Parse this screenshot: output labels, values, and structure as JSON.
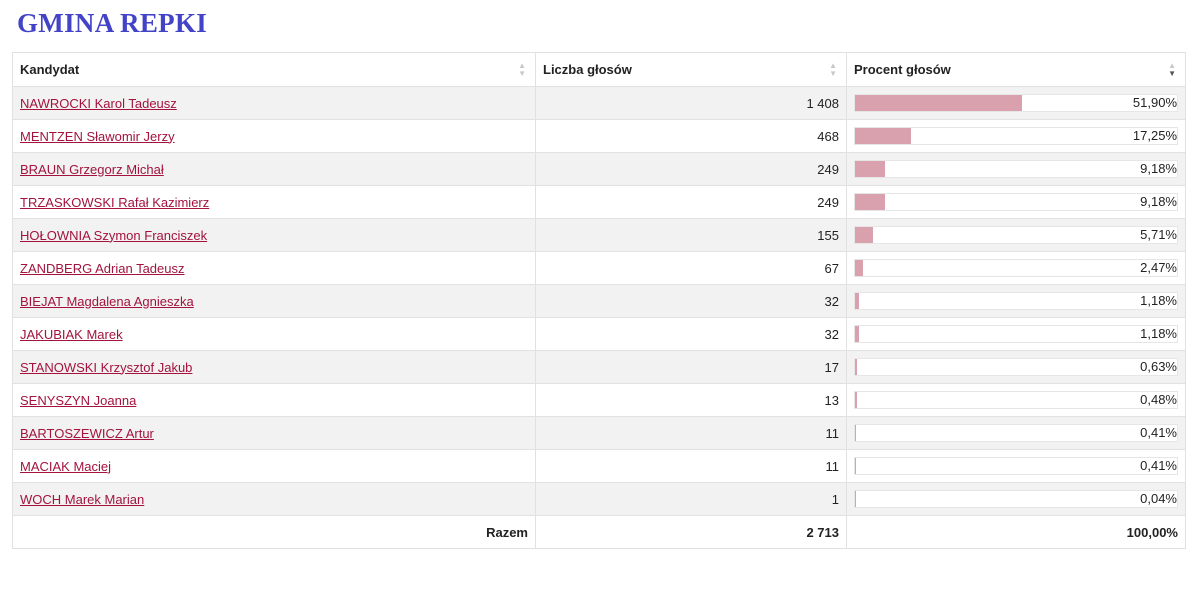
{
  "page_title": "GMINA REPKI",
  "table": {
    "headers": {
      "candidate": "Kandydat",
      "votes": "Liczba głosów",
      "percent": "Procent głosów"
    },
    "sort_icons": {
      "inactive": "sort-both-icon",
      "active": "sort-desc-icon"
    },
    "rows": [
      {
        "name": "NAWROCKI Karol Tadeusz",
        "votes": "1 408",
        "percent": "51,90%",
        "share": 51.9
      },
      {
        "name": "MENTZEN Sławomir Jerzy",
        "votes": "468",
        "percent": "17,25%",
        "share": 17.25
      },
      {
        "name": "BRAUN Grzegorz Michał",
        "votes": "249",
        "percent": "9,18%",
        "share": 9.18
      },
      {
        "name": "TRZASKOWSKI Rafał Kazimierz",
        "votes": "249",
        "percent": "9,18%",
        "share": 9.18
      },
      {
        "name": "HOŁOWNIA Szymon Franciszek",
        "votes": "155",
        "percent": "5,71%",
        "share": 5.71
      },
      {
        "name": "ZANDBERG Adrian Tadeusz",
        "votes": "67",
        "percent": "2,47%",
        "share": 2.47
      },
      {
        "name": "BIEJAT Magdalena Agnieszka",
        "votes": "32",
        "percent": "1,18%",
        "share": 1.18
      },
      {
        "name": "JAKUBIAK Marek",
        "votes": "32",
        "percent": "1,18%",
        "share": 1.18
      },
      {
        "name": "STANOWSKI Krzysztof Jakub",
        "votes": "17",
        "percent": "0,63%",
        "share": 0.63
      },
      {
        "name": "SENYSZYN Joanna",
        "votes": "13",
        "percent": "0,48%",
        "share": 0.48
      },
      {
        "name": "BARTOSZEWICZ Artur",
        "votes": "11",
        "percent": "0,41%",
        "share": 0.41
      },
      {
        "name": "MACIAK Maciej",
        "votes": "11",
        "percent": "0,41%",
        "share": 0.41
      },
      {
        "name": "WOCH Marek Marian",
        "votes": "1",
        "percent": "0,04%",
        "share": 0.04
      }
    ],
    "total": {
      "label": "Razem",
      "votes": "2 713",
      "percent": "100,00%"
    }
  },
  "colors": {
    "title": "#4343c8",
    "link": "#a3133d",
    "bar": "#d9a0ad",
    "row_alt": "#f2f2f2"
  }
}
